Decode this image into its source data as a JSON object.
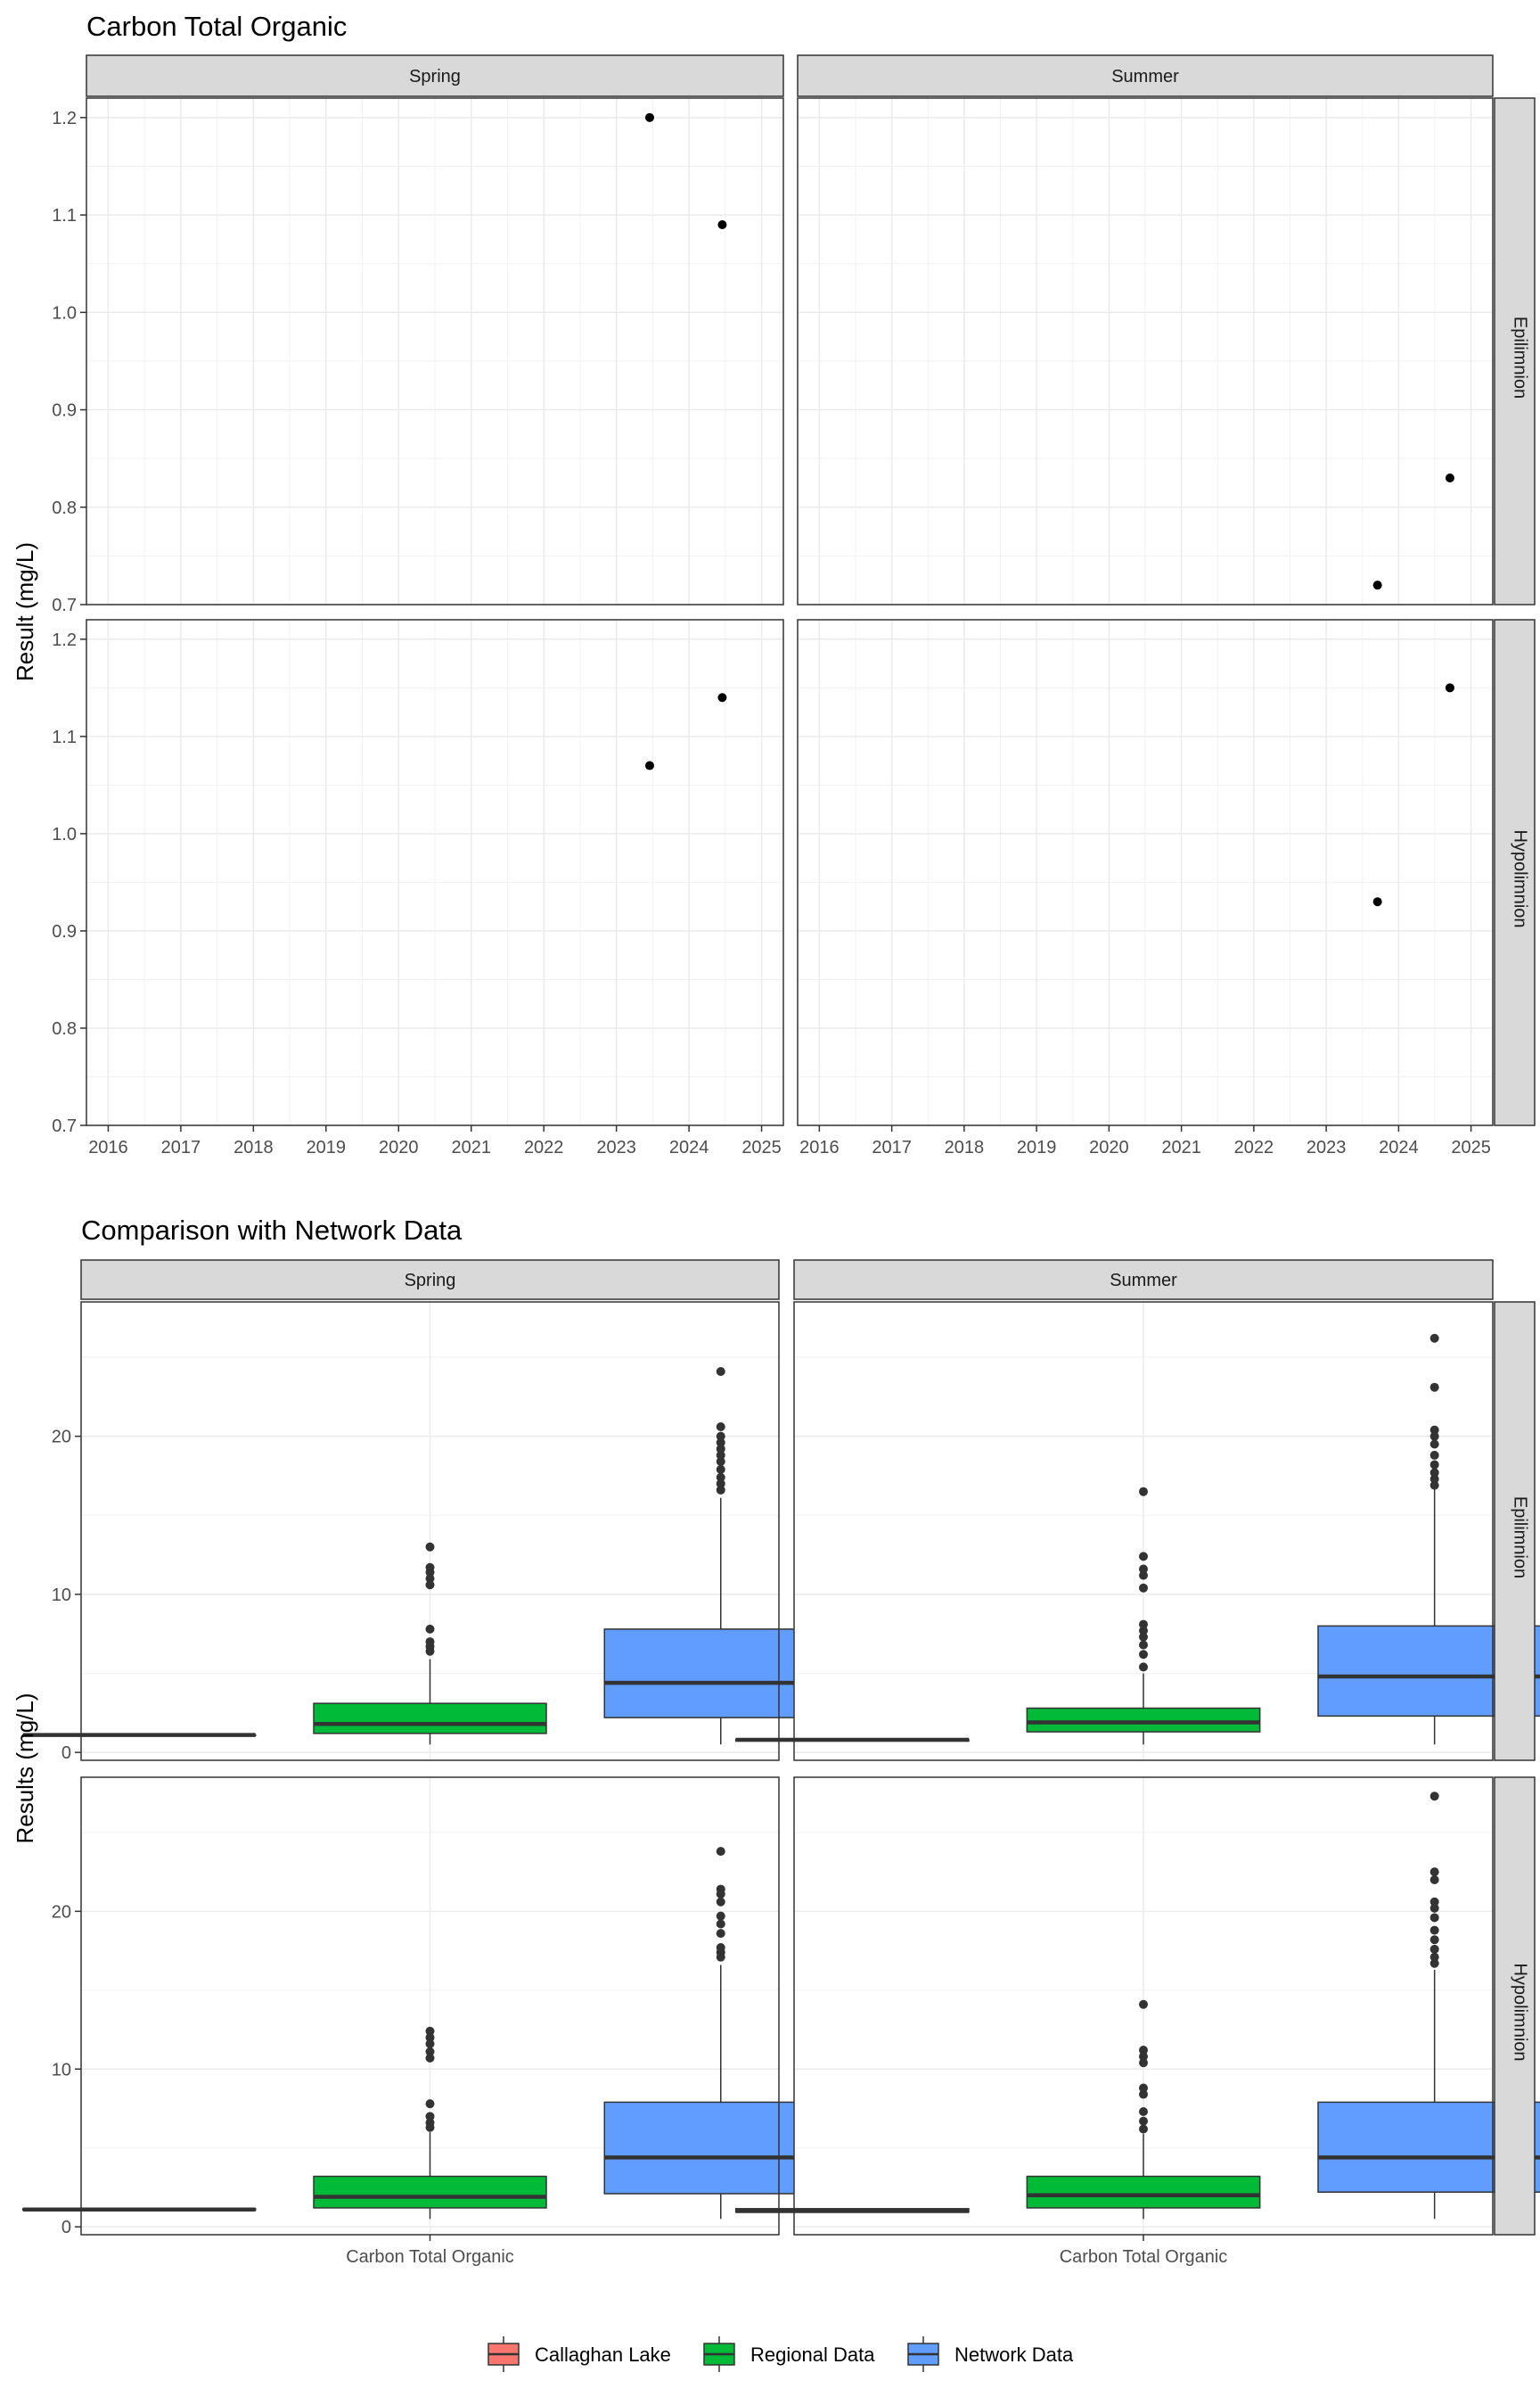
{
  "chart_data": [
    {
      "type": "scatter",
      "title": "Carbon Total Organic",
      "ylabel": "Result (mg/L)",
      "xlabel": "",
      "xlim": [
        2015.7,
        2025.3
      ],
      "ylim": [
        0.7,
        1.22
      ],
      "x_ticks": [
        "2016",
        "2017",
        "2018",
        "2019",
        "2020",
        "2021",
        "2022",
        "2023",
        "2024",
        "2025"
      ],
      "y_ticks": [
        "0.7",
        "0.8",
        "0.9",
        "1.0",
        "1.1",
        "1.2"
      ],
      "facet_cols": [
        "Spring",
        "Summer"
      ],
      "facet_rows": [
        "Epilimnion",
        "Hypolimnion"
      ],
      "grid": true,
      "panels": [
        {
          "col": "Spring",
          "row": "Epilimnion",
          "points": [
            {
              "x": "2023-06",
              "y": 1.2
            },
            {
              "x": "2024-06",
              "y": 1.09
            }
          ]
        },
        {
          "col": "Summer",
          "row": "Epilimnion",
          "points": [
            {
              "x": "2023-09",
              "y": 0.72
            },
            {
              "x": "2024-09",
              "y": 0.83
            }
          ]
        },
        {
          "col": "Spring",
          "row": "Hypolimnion",
          "points": [
            {
              "x": "2023-06",
              "y": 1.07
            },
            {
              "x": "2024-06",
              "y": 1.14
            }
          ]
        },
        {
          "col": "Summer",
          "row": "Hypolimnion",
          "points": [
            {
              "x": "2023-09",
              "y": 0.93
            },
            {
              "x": "2024-09",
              "y": 1.15
            }
          ]
        }
      ]
    },
    {
      "type": "box",
      "title": "Comparison with Network Data",
      "ylabel": "Results (mg/L)",
      "xlabel": "",
      "x_category": "Carbon Total Organic",
      "ylim": [
        -0.5,
        28.5
      ],
      "y_ticks": [
        "0",
        "10",
        "20"
      ],
      "facet_cols": [
        "Spring",
        "Summer"
      ],
      "facet_rows": [
        "Epilimnion",
        "Hypolimnion"
      ],
      "grid": true,
      "legend_position": "bottom",
      "series": [
        {
          "name": "Callaghan Lake",
          "color": "#F8766D"
        },
        {
          "name": "Regional Data",
          "color": "#00BA38"
        },
        {
          "name": "Network Data",
          "color": "#619CFF"
        }
      ],
      "panels": [
        {
          "col": "Spring",
          "row": "Epilimnion",
          "boxes": [
            {
              "series": "Callaghan Lake",
              "min": 1.1,
              "q1": 1.1,
              "median": 1.1,
              "q3": 1.1,
              "max": 1.2,
              "outliers": []
            },
            {
              "series": "Regional Data",
              "min": 0.5,
              "q1": 1.2,
              "median": 1.8,
              "q3": 3.1,
              "max": 5.9,
              "outliers": [
                6.4,
                6.7,
                7.0,
                7.8,
                10.6,
                11.0,
                11.4,
                11.7,
                13.0
              ]
            },
            {
              "series": "Network Data",
              "min": 0.5,
              "q1": 2.2,
              "median": 4.4,
              "q3": 7.8,
              "max": 16.1,
              "outliers": [
                16.6,
                17.0,
                17.4,
                17.9,
                18.4,
                18.8,
                19.2,
                19.6,
                20.0,
                20.6,
                24.1
              ]
            }
          ]
        },
        {
          "col": "Summer",
          "row": "Epilimnion",
          "boxes": [
            {
              "series": "Callaghan Lake",
              "min": 0.72,
              "q1": 0.72,
              "median": 0.8,
              "q3": 0.83,
              "max": 0.83,
              "outliers": []
            },
            {
              "series": "Regional Data",
              "min": 0.5,
              "q1": 1.3,
              "median": 1.9,
              "q3": 2.8,
              "max": 5.0,
              "outliers": [
                5.4,
                6.2,
                6.8,
                7.3,
                7.7,
                8.1,
                10.4,
                11.2,
                11.6,
                12.4,
                16.5
              ]
            },
            {
              "series": "Network Data",
              "min": 0.5,
              "q1": 2.3,
              "median": 4.8,
              "q3": 8.0,
              "max": 16.7,
              "outliers": [
                16.9,
                17.3,
                17.7,
                18.2,
                18.8,
                19.5,
                20.0,
                20.4,
                23.1,
                26.2
              ]
            }
          ]
        },
        {
          "col": "Spring",
          "row": "Hypolimnion",
          "boxes": [
            {
              "series": "Callaghan Lake",
              "min": 1.07,
              "q1": 1.07,
              "median": 1.1,
              "q3": 1.14,
              "max": 1.14,
              "outliers": []
            },
            {
              "series": "Regional Data",
              "min": 0.5,
              "q1": 1.2,
              "median": 1.9,
              "q3": 3.2,
              "max": 6.0,
              "outliers": [
                6.3,
                6.6,
                7.0,
                7.8,
                10.7,
                11.1,
                11.6,
                12.0,
                12.4
              ]
            },
            {
              "series": "Network Data",
              "min": 0.5,
              "q1": 2.1,
              "median": 4.4,
              "q3": 7.9,
              "max": 16.6,
              "outliers": [
                17.1,
                17.4,
                17.7,
                18.6,
                19.2,
                19.7,
                20.6,
                21.1,
                21.4,
                23.8
              ]
            }
          ]
        },
        {
          "col": "Summer",
          "row": "Hypolimnion",
          "boxes": [
            {
              "series": "Callaghan Lake",
              "min": 0.93,
              "q1": 0.93,
              "median": 1.0,
              "q3": 1.15,
              "max": 1.15,
              "outliers": []
            },
            {
              "series": "Regional Data",
              "min": 0.5,
              "q1": 1.2,
              "median": 2.0,
              "q3": 3.2,
              "max": 5.9,
              "outliers": [
                6.2,
                6.7,
                7.3,
                8.4,
                8.8,
                10.4,
                10.8,
                11.2,
                14.1
              ]
            },
            {
              "series": "Network Data",
              "min": 0.5,
              "q1": 2.2,
              "median": 4.4,
              "q3": 7.9,
              "max": 16.3,
              "outliers": [
                16.7,
                17.1,
                17.6,
                18.2,
                18.8,
                19.6,
                20.2,
                20.6,
                22.0,
                22.5,
                27.3
              ]
            }
          ]
        }
      ]
    }
  ]
}
